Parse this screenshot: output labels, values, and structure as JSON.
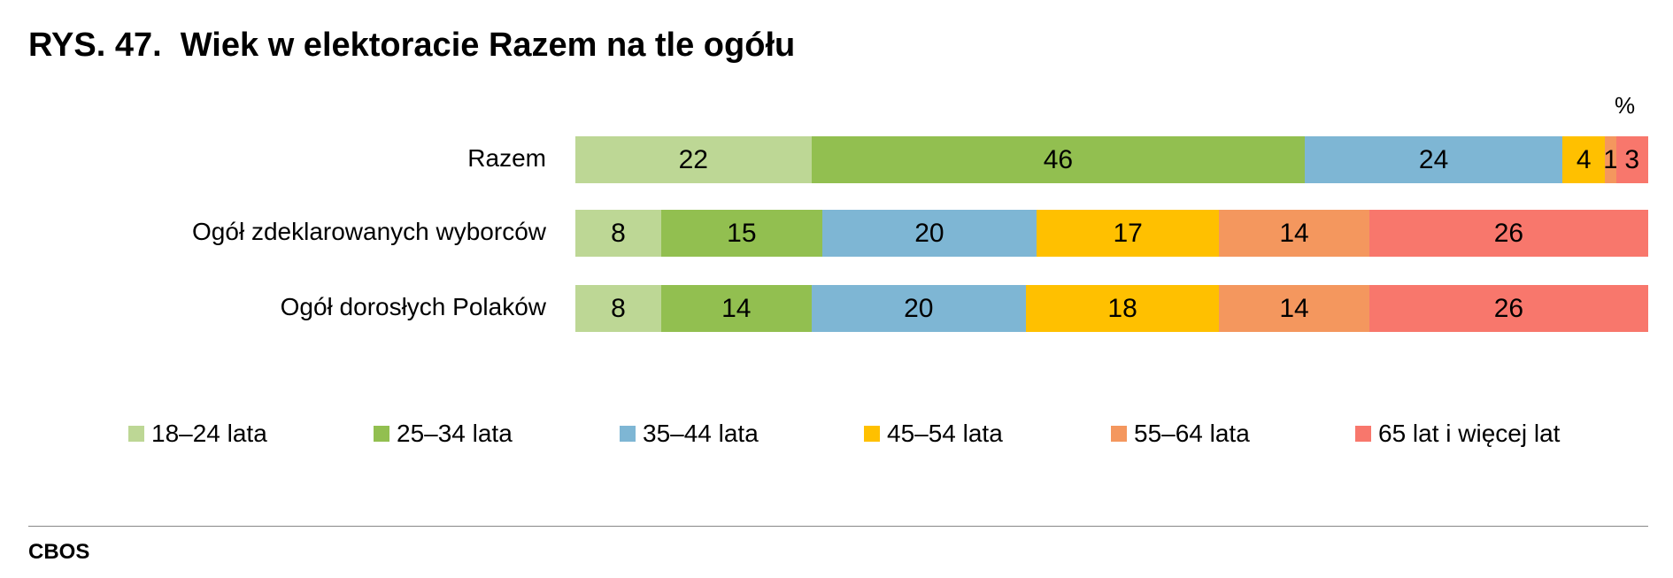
{
  "chart_data": {
    "type": "bar",
    "orientation": "horizontal",
    "stacked": true,
    "title": "RYS. 47.  Wiek w elektoracie Razem na tle ogółu",
    "unit": "%",
    "categories": [
      "Razem",
      "Ogół zdeklarowanych wyborców",
      "Ogół dorosłych Polaków"
    ],
    "series": [
      {
        "name": "18–24 lata",
        "color": "#bdd795",
        "values": [
          22,
          8,
          8
        ]
      },
      {
        "name": "25–34 lata",
        "color": "#92bf50",
        "values": [
          46,
          15,
          14
        ]
      },
      {
        "name": "35–44 lata",
        "color": "#7eb6d4",
        "values": [
          24,
          20,
          20
        ]
      },
      {
        "name": "45–54 lata",
        "color": "#ffc000",
        "values": [
          4,
          17,
          18
        ]
      },
      {
        "name": "55–64 lata",
        "color": "#f4975e",
        "values": [
          1,
          14,
          14
        ]
      },
      {
        "name": "65 lat i więcej lat",
        "color": "#f8776c",
        "values": [
          3,
          26,
          26
        ]
      }
    ],
    "xlim": [
      0,
      100
    ],
    "grid": false,
    "legend": "bottom"
  },
  "source": "CBOS"
}
